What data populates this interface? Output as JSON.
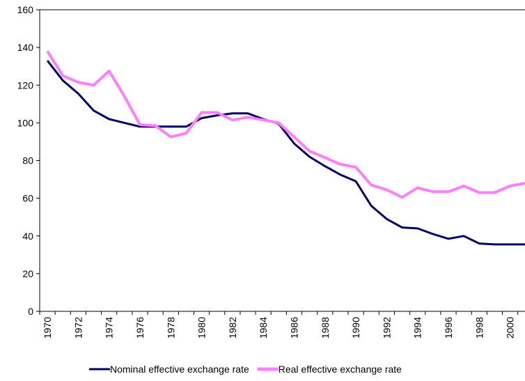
{
  "chart_data": {
    "type": "line",
    "categories": [
      "1970",
      null,
      "1972",
      null,
      "1974",
      null,
      "1976",
      null,
      "1978",
      null,
      "1980",
      null,
      "1982",
      null,
      "1984",
      null,
      "1986",
      null,
      "1988",
      null,
      "1990",
      null,
      "1992",
      null,
      "1994",
      null,
      "1996",
      null,
      "1998",
      null,
      "2000",
      null
    ],
    "series": [
      {
        "name": "Nominal effective exchange rate",
        "color": "#000066",
        "values": [
          133,
          122.5,
          115.5,
          106.5,
          102,
          100,
          98,
          98,
          98,
          98,
          102.5,
          104,
          105,
          105,
          102,
          99.5,
          89,
          82,
          77,
          72.5,
          69,
          56,
          49,
          44.5,
          44,
          41,
          38.5,
          40,
          36,
          35.5,
          35.5,
          35.5
        ]
      },
      {
        "name": "Real effective exchange rate",
        "color": "#ff80ff",
        "values": [
          138,
          125,
          121.5,
          120,
          127.5,
          114,
          99,
          98.5,
          92.5,
          94.5,
          105.5,
          105.5,
          101.5,
          103,
          101.5,
          100,
          92.5,
          85,
          81.5,
          78,
          76.5,
          67,
          64.5,
          60.5,
          65.5,
          63.5,
          63.5,
          66.5,
          63,
          63,
          66.5,
          68
        ]
      }
    ],
    "ylim": [
      0,
      160
    ],
    "yticks": [
      0,
      20,
      40,
      60,
      80,
      100,
      120,
      140,
      160
    ],
    "grid": false,
    "legend": "bottom"
  }
}
